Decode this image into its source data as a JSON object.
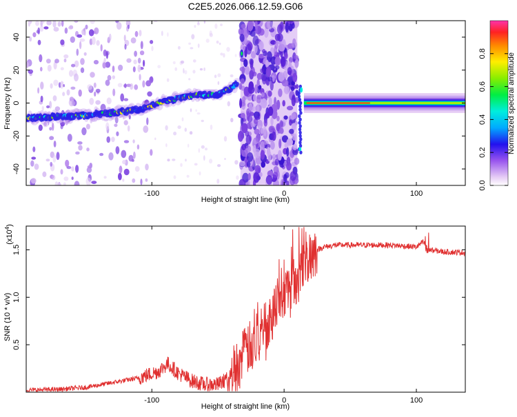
{
  "figure": {
    "title": "C2E5.2026.066.12.59.G06"
  },
  "chart_data": [
    {
      "type": "heatmap",
      "xlabel": "Height of straight line (km)",
      "ylabel": "Frequency (Hz)",
      "xlim": [
        -195,
        137
      ],
      "ylim": [
        -50,
        50
      ],
      "x_ticks": [
        -100,
        0,
        100
      ],
      "y_ticks": [
        -40,
        -20,
        0,
        20,
        40
      ],
      "colorbar": {
        "label": "Normalized spectral amplitude",
        "range": [
          0.0,
          1.0
        ],
        "ticks": [
          "0.0",
          "0.2",
          "0.4",
          "0.6",
          "0.8"
        ]
      },
      "ridge": {
        "height_km": [
          -195,
          -160,
          -130,
          -110,
          -95,
          -80,
          -65,
          -50,
          -45,
          -40,
          -35
        ],
        "frequency_hz": [
          -9,
          -8,
          -6,
          -4,
          0,
          3,
          5,
          5,
          7,
          9,
          12
        ]
      },
      "tail": {
        "height_range_km": [
          15,
          137
        ],
        "frequency_hz": 0
      },
      "noise_band_km": [
        -33,
        10
      ]
    },
    {
      "type": "line",
      "xlabel": "Height of straight line (km)",
      "ylabel": "SNR (10 * v/v)",
      "scale_label": "(x10",
      "scale_exp": "4",
      "xlim": [
        -195,
        137
      ],
      "ylim": [
        0,
        1.75
      ],
      "x_ticks": [
        -100,
        0,
        100
      ],
      "y_ticks": [
        "0.5",
        "1.0",
        "1.5"
      ],
      "series": [
        {
          "color": "#e03030",
          "x": [
            -195,
            -170,
            -150,
            -130,
            -110,
            -95,
            -88,
            -80,
            -70,
            -60,
            -50,
            -42,
            -35,
            -28,
            -20,
            -12,
            -5,
            0,
            5,
            10,
            15,
            20,
            25,
            30,
            40,
            60,
            80,
            100,
            105,
            110,
            120,
            137
          ],
          "y": [
            0.02,
            0.03,
            0.05,
            0.1,
            0.15,
            0.22,
            0.3,
            0.2,
            0.12,
            0.08,
            0.08,
            0.15,
            0.3,
            0.45,
            0.55,
            0.75,
            0.95,
            1.05,
            1.1,
            1.2,
            1.35,
            1.45,
            1.5,
            1.53,
            1.55,
            1.55,
            1.55,
            1.53,
            1.58,
            1.5,
            1.48,
            1.47
          ]
        }
      ]
    }
  ]
}
